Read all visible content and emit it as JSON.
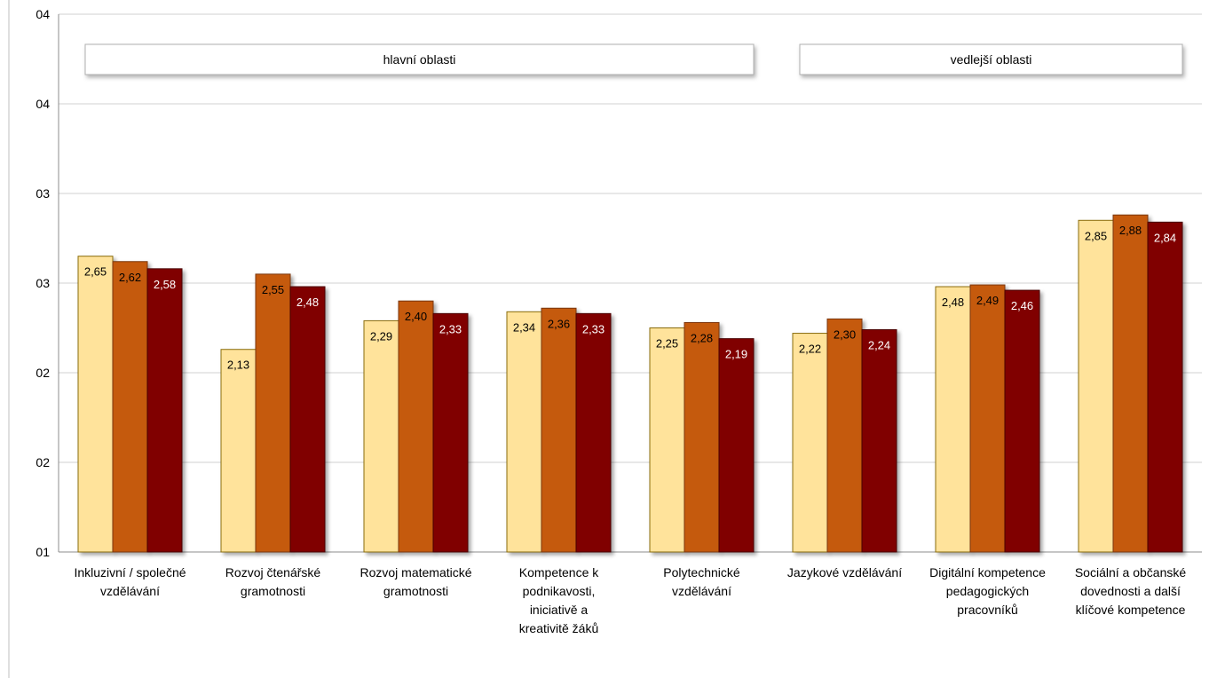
{
  "chart_data": {
    "type": "bar",
    "title": "",
    "xlabel": "",
    "ylabel": "",
    "y_tick_labels": [
      "01",
      "02",
      "02",
      "03",
      "03",
      "04",
      "04"
    ],
    "ylim": [
      1.0,
      4.0
    ],
    "grid": true,
    "legend": "none",
    "categories": [
      "Inkluzivní / společné vzdělávání",
      "Rozvoj čtenářské gramotnosti",
      "Rozvoj matematické gramotnosti",
      "Kompetence k podnikavosti, iniciativě a kreativitě žáků",
      "Polytechnické vzdělávání",
      "Jazykové vzdělávání",
      "Digitální kompetence pedagogických pracovníků",
      "Sociální a občanské dovednosti a další klíčové kompetence"
    ],
    "series": [
      {
        "values": [
          2.65,
          2.13,
          2.29,
          2.34,
          2.25,
          2.22,
          2.48,
          2.85
        ],
        "labels": [
          "2,65",
          "2,13",
          "2,29",
          "2,34",
          "2,25",
          "2,22",
          "2,48",
          "2,85"
        ]
      },
      {
        "values": [
          2.62,
          2.55,
          2.4,
          2.36,
          2.28,
          2.3,
          2.49,
          2.88
        ],
        "labels": [
          "2,62",
          "2,55",
          "2,40",
          "2,36",
          "2,28",
          "2,30",
          "2,49",
          "2,88"
        ]
      },
      {
        "values": [
          2.58,
          2.48,
          2.33,
          2.33,
          2.19,
          2.24,
          2.46,
          2.84
        ],
        "labels": [
          "2,58",
          "2,48",
          "2,33",
          "2,33",
          "2,19",
          "2,24",
          "2,46",
          "2,84"
        ]
      }
    ],
    "series_colors": [
      "#FFE39B",
      "#C55A11",
      "#800000"
    ],
    "series_label_colors": [
      "#000000",
      "#000000",
      "#ffffff"
    ],
    "group_labels": [
      {
        "label": "hlavní oblasti",
        "categories": [
          0,
          4
        ]
      },
      {
        "label": "vedlejší oblasti",
        "categories": [
          5,
          7
        ]
      }
    ]
  }
}
